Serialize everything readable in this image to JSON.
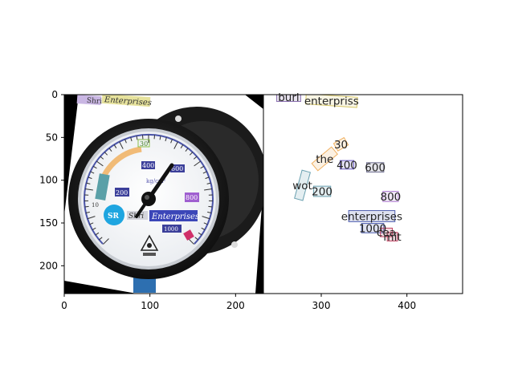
{
  "figure": {
    "xticks": [
      "0",
      "100",
      "200",
      "300",
      "400"
    ],
    "yticks": [
      "0",
      "50",
      "100",
      "150",
      "200"
    ],
    "xlim": [
      0,
      465
    ],
    "ylim": [
      232,
      0
    ]
  },
  "gauge_panel": {
    "dial_texts": [
      {
        "id": "lbl-30",
        "text": "30"
      },
      {
        "id": "lbl-400",
        "text": "400"
      },
      {
        "id": "lbl-600",
        "text": "600"
      },
      {
        "id": "lbl-200",
        "text": "200"
      },
      {
        "id": "lbl-800",
        "text": "800"
      },
      {
        "id": "lbl-1000",
        "text": "1000"
      },
      {
        "id": "lbl-unit",
        "text": "kg/cm²"
      },
      {
        "id": "lbl-enterprises",
        "text": "Enterprises"
      },
      {
        "id": "lbl-shri",
        "text": "Shri"
      },
      {
        "id": "lbl-top-enterprises",
        "text": "Enterprises"
      },
      {
        "id": "lbl-top-shri",
        "text": "Shri"
      },
      {
        "id": "lbl-10",
        "text": "10"
      },
      {
        "id": "lbl-sr",
        "text": "SR"
      }
    ]
  },
  "detections": [
    {
      "id": "det-buri",
      "text": "buri",
      "color": "#8a6fb0",
      "x": 262,
      "y": 3
    },
    {
      "id": "det-enterpriss",
      "text": "enterpriss",
      "color": "#d9c96a",
      "x": 312,
      "y": 7
    },
    {
      "id": "det-30",
      "text": "30",
      "color": "#f0b060",
      "x": 323,
      "y": 58
    },
    {
      "id": "det-the",
      "text": "the",
      "color": "#f0b060",
      "x": 304,
      "y": 75
    },
    {
      "id": "det-400",
      "text": "400",
      "color": "#6f5fc8",
      "x": 330,
      "y": 82
    },
    {
      "id": "det-600",
      "text": "600",
      "color": "#6f6f90",
      "x": 363,
      "y": 85
    },
    {
      "id": "det-wot",
      "text": "wot",
      "color": "#6aa0b0",
      "x": 278,
      "y": 106
    },
    {
      "id": "det-200",
      "text": "200",
      "color": "#6aa0b0",
      "x": 301,
      "y": 113
    },
    {
      "id": "det-800",
      "text": "800",
      "color": "#b080d0",
      "x": 381,
      "y": 119
    },
    {
      "id": "det-enterprises",
      "text": "enterprises",
      "color": "#5060b0",
      "x": 359,
      "y": 142
    },
    {
      "id": "det-1000",
      "text": "1000",
      "color": "#5060b0",
      "x": 360,
      "y": 156
    },
    {
      "id": "det-cea",
      "text": "cea",
      "color": "#c04060",
      "x": 376,
      "y": 161
    },
    {
      "id": "det-mit",
      "text": "mit",
      "color": "#c04060",
      "x": 383,
      "y": 166
    }
  ]
}
